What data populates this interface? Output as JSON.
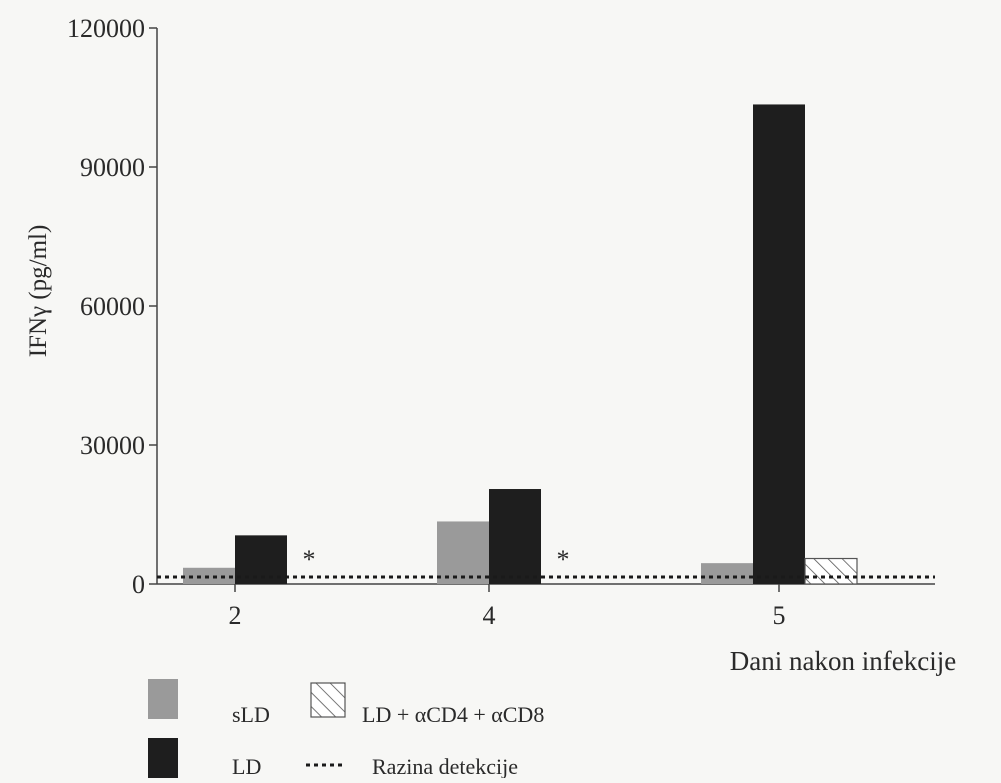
{
  "chart_data": {
    "type": "bar",
    "xlabel": "Dani nakon infekcije",
    "ylabel": "IFNγ (pg/ml)",
    "ylim": [
      0,
      120000
    ],
    "yticks": [
      "0",
      "30000",
      "60000",
      "90000",
      "120000"
    ],
    "categories": [
      "2",
      "4",
      "5"
    ],
    "series": [
      {
        "name": "sLD",
        "values": [
          3500,
          13500,
          4500
        ],
        "color": "#9a9a9a",
        "pattern": "solid"
      },
      {
        "name": "LD",
        "values": [
          10500,
          20500,
          103500
        ],
        "color": "#1e1e1e",
        "pattern": "solid"
      },
      {
        "name": "LD + αCD4 + αCD8",
        "values": [
          null,
          null,
          5500
        ],
        "color": "#ffffff",
        "pattern": "hatch"
      }
    ],
    "detection_level": {
      "label": "Razina detekcije",
      "value": 1500
    },
    "annotations": [
      {
        "category": "2",
        "text": "*"
      },
      {
        "category": "4",
        "text": "*"
      }
    ],
    "grid": false,
    "legend_position": "bottom-left"
  }
}
